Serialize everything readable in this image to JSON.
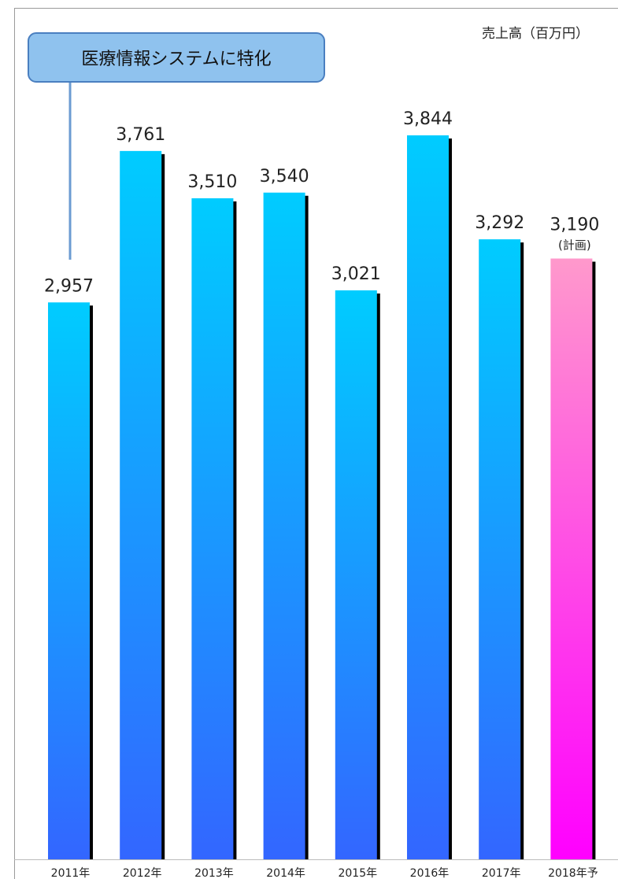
{
  "chart_data": {
    "type": "bar",
    "unit_label": "売上高（百万円）",
    "categories": [
      "2011年",
      "2012年",
      "2013年",
      "2014年",
      "2015年",
      "2016年",
      "2017年",
      "2018年予"
    ],
    "values": [
      2957,
      3761,
      3510,
      3540,
      3021,
      3844,
      3292,
      3190
    ],
    "value_labels": [
      "2,957",
      "3,761",
      "3,510",
      "3,540",
      "3,021",
      "3,844",
      "3,292",
      "3,190"
    ],
    "forecast_index": 7,
    "forecast_note": "(計画)",
    "ylim": [
      0,
      4000
    ],
    "grid": false,
    "legend": "none",
    "callout": {
      "text": "医療情報システムに特化",
      "category_index": 0
    }
  },
  "colors": {
    "bar_top": "#00ccff",
    "bar_bottom": "#3366ff",
    "forecast_top": "#ff99cc",
    "forecast_bottom": "#ff00ff",
    "shadow": "#000000",
    "callout_fill": "#8fc2ee",
    "callout_stroke": "#4a7fc0",
    "callout_line": "#6b9bd2",
    "frame": "#9a9a9a"
  }
}
